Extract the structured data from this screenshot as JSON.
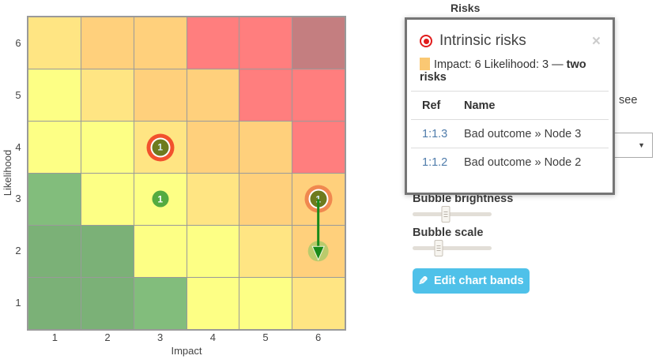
{
  "chart": {
    "type": "risk-matrix-heatmap",
    "xlabel": "Impact",
    "ylabel": "Likelihood",
    "x_ticks": [
      "1",
      "2",
      "3",
      "4",
      "5",
      "6"
    ],
    "y_ticks": [
      "6",
      "5",
      "4",
      "3",
      "2",
      "1"
    ],
    "cells": [
      [
        "#ffe583",
        "#ffd07c",
        "#ffd07c",
        "#ff7e7e",
        "#ff7e7e",
        "#c47e80"
      ],
      [
        "#fdff85",
        "#ffe583",
        "#ffd07c",
        "#ffd07c",
        "#ff7e7e",
        "#ff7e7e"
      ],
      [
        "#fdff85",
        "#fdff85",
        "#ffe583",
        "#ffd07c",
        "#ffd07c",
        "#ff7e7e"
      ],
      [
        "#82bd7c",
        "#fdff85",
        "#fdff85",
        "#ffe583",
        "#ffd07c",
        "#ffd07c"
      ],
      [
        "#7bb177",
        "#7bb177",
        "#fdff85",
        "#fdff85",
        "#ffe583",
        "#ffd07c"
      ],
      [
        "#7bb177",
        "#7bb177",
        "#82bd7c",
        "#fdff85",
        "#fdff85",
        "#ffe583"
      ]
    ],
    "bubbles": [
      {
        "impact": 3,
        "likelihood": 4,
        "label": "1",
        "fill": "#6e7b1e",
        "text_color": "#d7eef6",
        "ring": "#f2512d"
      },
      {
        "impact": 3,
        "likelihood": 3,
        "label": "1",
        "fill": "#54ab40",
        "text_color": "#ffffff",
        "ring": null
      },
      {
        "impact": 6,
        "likelihood": 3,
        "label": "1",
        "fill": "#6e7b1e",
        "text_color": "#d7eef6",
        "ring": "#f0884f"
      }
    ],
    "arrow": {
      "impact": 6,
      "from_likelihood": 3,
      "to_likelihood": 2,
      "color": "#1a8a1a",
      "target_fill": "#a9c968"
    }
  },
  "panel": {
    "title": "Risks",
    "hidden_text": "see",
    "popup": {
      "title": "Intrinsic risks",
      "close_glyph": "×",
      "swatch_color": "#fac873",
      "subtitle": "Impact: 6 Likelihood: 3 —",
      "subtitle_bold": "two risks",
      "table": {
        "headers": [
          "Ref",
          "Name"
        ],
        "rows": [
          {
            "ref": "1:1.3",
            "name": "Bad outcome » Node 3"
          },
          {
            "ref": "1:1.2",
            "name": "Bad outcome » Node 2"
          }
        ]
      },
      "ref_link_color": "#4f7cab"
    },
    "controls": {
      "sliders": [
        {
          "label": "Bubble brightness",
          "position_pct": 42
        },
        {
          "label": "Bubble scale",
          "position_pct": 33
        }
      ],
      "edit_button_label": "Edit chart bands",
      "edit_button_color": "#4fc1e9",
      "pencil_glyph": "✎"
    }
  }
}
